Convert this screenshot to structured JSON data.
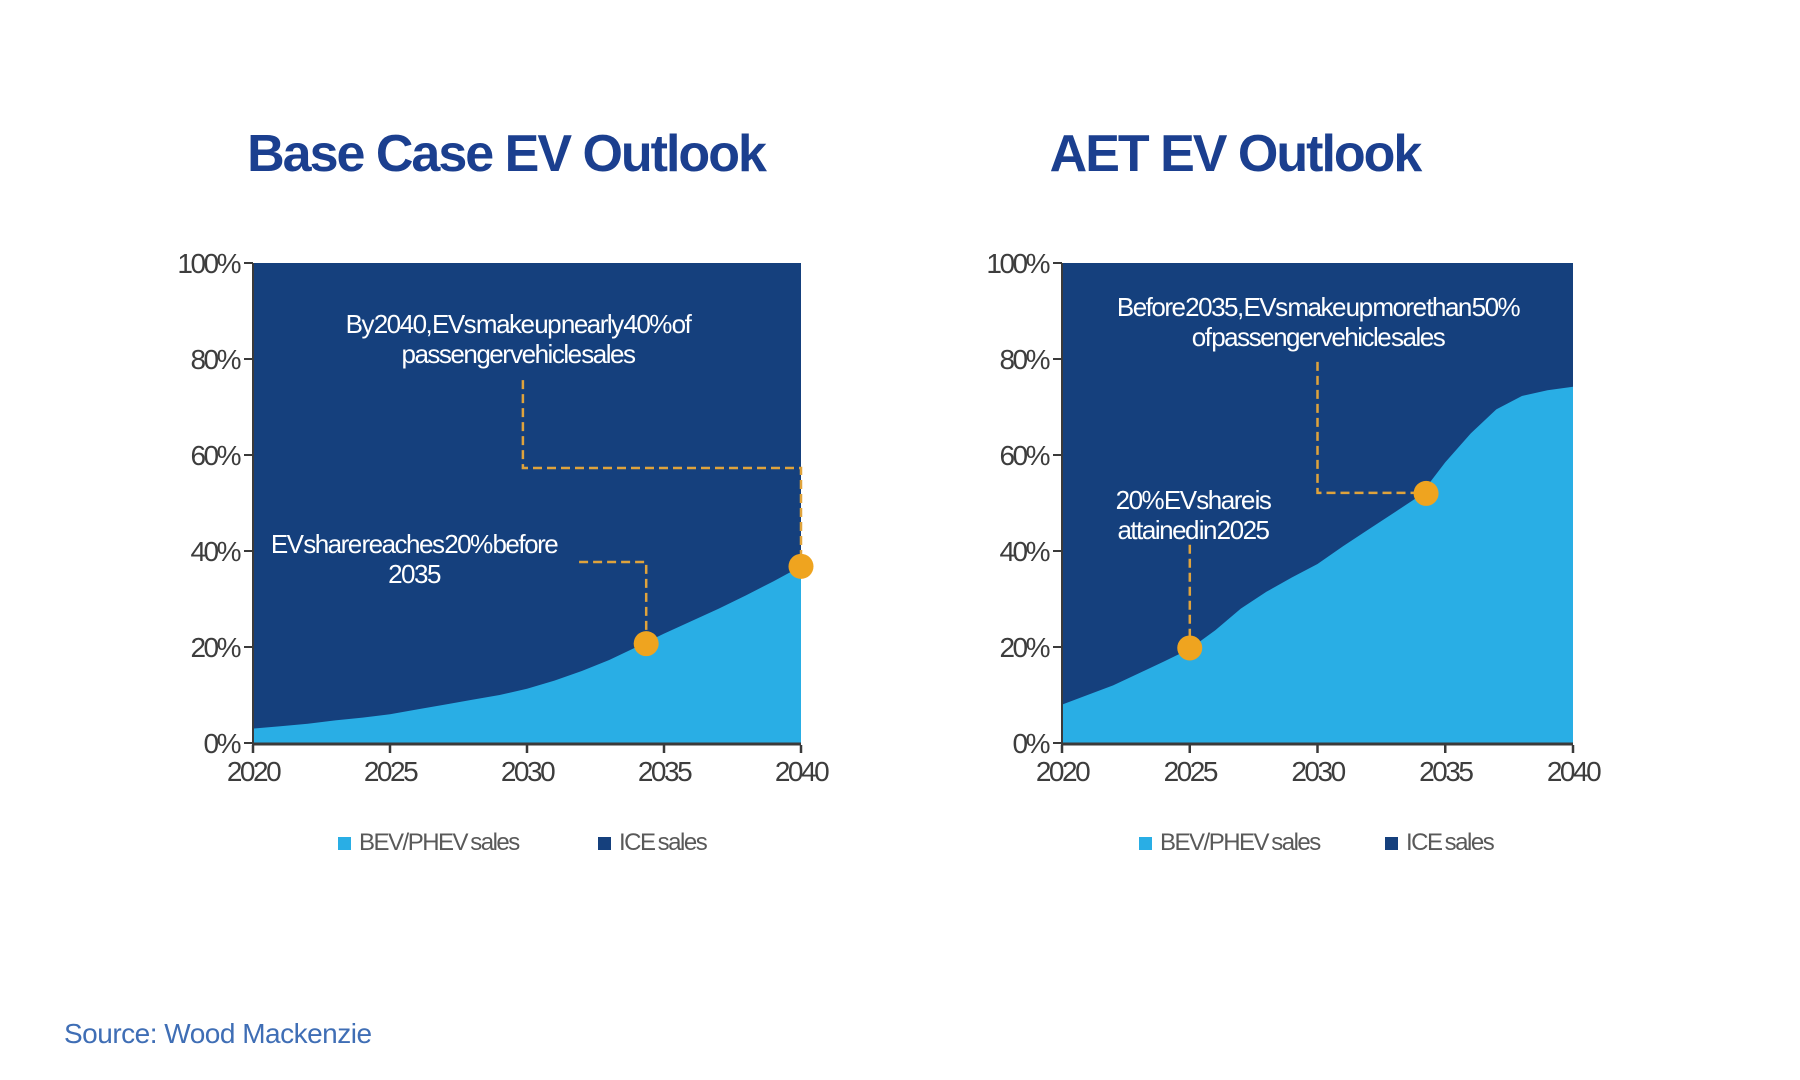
{
  "page": {
    "source_note": "Source: Wood Mackenzie"
  },
  "colors": {
    "title_blue": "#1B3F8F",
    "navy": "#15407D",
    "light_blue": "#29AEE5",
    "orange_dot": "#EFA41F",
    "dash_orange": "#DFA33C",
    "annotation_text": "#FFFFFF",
    "axis_text": "#3D3D3D",
    "axis_line": "#3A3A3A",
    "legend_text": "#595959",
    "source_text": "#3F6EB5"
  },
  "chart_data": [
    {
      "type": "area",
      "stacked": true,
      "units": "percent of passenger vehicle sales",
      "title": "Base Case EV Outlook",
      "x": [
        2020,
        2021,
        2022,
        2023,
        2024,
        2025,
        2026,
        2027,
        2028,
        2029,
        2030,
        2031,
        2032,
        2033,
        2034,
        2035,
        2036,
        2037,
        2038,
        2039,
        2040
      ],
      "series": [
        {
          "name": "BEV/PHEV sales",
          "color_key": "light_blue",
          "values": [
            3,
            3.5,
            4,
            4.7,
            5.3,
            6,
            7,
            8,
            9,
            10,
            11.3,
            13,
            15,
            17.3,
            20,
            22.8,
            25.4,
            28,
            30.8,
            33.7,
            36.8
          ]
        },
        {
          "name": "ICE sales",
          "color_key": "navy",
          "values": [
            97,
            96.5,
            96,
            95.3,
            94.7,
            94,
            93,
            92,
            91,
            90,
            88.7,
            87,
            85,
            82.7,
            80,
            77.2,
            74.6,
            72,
            69.2,
            66.3,
            63.2
          ]
        }
      ],
      "ylim": [
        0,
        100
      ],
      "yticks": [
        {
          "label": "0%",
          "value": 0
        },
        {
          "label": "20%",
          "value": 20
        },
        {
          "label": "40%",
          "value": 40
        },
        {
          "label": "60%",
          "value": 60
        },
        {
          "label": "80%",
          "value": 80
        },
        {
          "label": "100%",
          "value": 100
        }
      ],
      "xticks": [
        {
          "label": "2020",
          "value": 2020
        },
        {
          "label": "2025",
          "value": 2025
        },
        {
          "label": "2030",
          "value": 2030
        },
        {
          "label": "2035",
          "value": 2035
        },
        {
          "label": "2040",
          "value": 2040
        }
      ],
      "legend": [
        "BEV/PHEV sales",
        "ICE sales"
      ],
      "annotations": [
        {
          "lines": [
            "By 2040, EVs make up nearly 40% of",
            "passenger vehicle sales"
          ],
          "marker": {
            "year": 2040,
            "value": 36.8
          }
        },
        {
          "lines": [
            "EV share reaches 20% before",
            "2035"
          ],
          "marker": {
            "year": 2034.35,
            "value": 20.7
          }
        }
      ]
    },
    {
      "type": "area",
      "stacked": true,
      "units": "percent of passenger vehicle sales",
      "title": "AET EV Outlook",
      "x": [
        2020,
        2021,
        2022,
        2023,
        2024,
        2025,
        2026,
        2027,
        2028,
        2029,
        2030,
        2031,
        2032,
        2033,
        2034,
        2035,
        2036,
        2037,
        2038,
        2039,
        2040
      ],
      "series": [
        {
          "name": "BEV/PHEV sales",
          "color_key": "light_blue",
          "values": [
            8,
            10,
            12,
            14.5,
            17,
            19.6,
            23.5,
            28,
            31.5,
            34.5,
            37.3,
            41,
            44.5,
            48,
            51.5,
            58.5,
            64.5,
            69.5,
            72.3,
            73.5,
            74.2
          ]
        },
        {
          "name": "ICE sales",
          "color_key": "navy",
          "values": [
            92,
            90,
            88,
            85.5,
            83,
            80.4,
            76.5,
            72,
            68.5,
            65.5,
            62.7,
            59,
            55.5,
            52,
            48.5,
            41.5,
            35.5,
            30.5,
            27.7,
            26.5,
            25.8
          ]
        }
      ],
      "ylim": [
        0,
        100
      ],
      "yticks": [
        {
          "label": "0%",
          "value": 0
        },
        {
          "label": "20%",
          "value": 20
        },
        {
          "label": "40%",
          "value": 40
        },
        {
          "label": "60%",
          "value": 60
        },
        {
          "label": "80%",
          "value": 80
        },
        {
          "label": "100%",
          "value": 100
        }
      ],
      "xticks": [
        {
          "label": "2020",
          "value": 2020
        },
        {
          "label": "2025",
          "value": 2025
        },
        {
          "label": "2030",
          "value": 2030
        },
        {
          "label": "2035",
          "value": 2035
        },
        {
          "label": "2040",
          "value": 2040
        }
      ],
      "legend": [
        "BEV/PHEV sales",
        "ICE sales"
      ],
      "annotations": [
        {
          "lines": [
            "Before 2035, EVs make up more than 50%",
            "of passenger vehicle sales"
          ],
          "marker": {
            "year": 2034.25,
            "value": 52
          }
        },
        {
          "lines": [
            "20% EV share is",
            "attained in 2025"
          ],
          "marker": {
            "year": 2025,
            "value": 19.8
          }
        }
      ]
    }
  ]
}
